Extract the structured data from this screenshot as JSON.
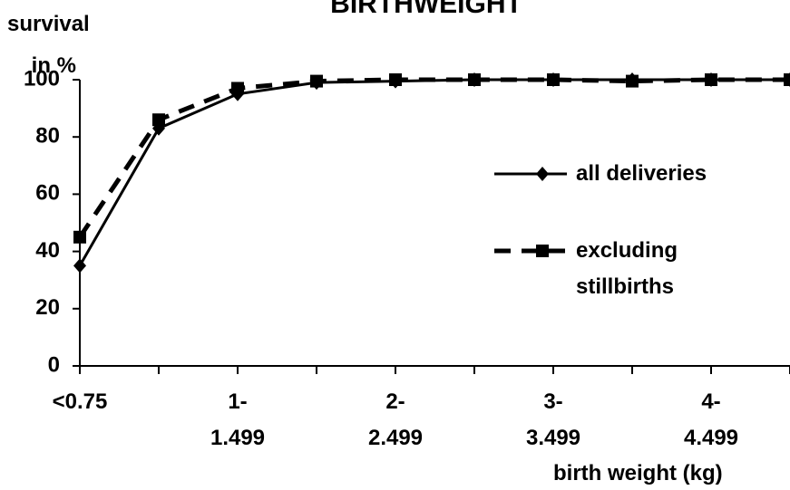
{
  "chart_data": {
    "type": "line",
    "title": "BIRTHWEIGHT",
    "ylabel": "survival\n    in %",
    "xlabel": "birth weight (kg)",
    "categories": [
      "<0.75",
      null,
      "1-\n1.499",
      null,
      "2-\n2.499",
      null,
      "3-\n3.499",
      null,
      "4-\n4.499",
      null
    ],
    "series": [
      {
        "name": "all deliveries",
        "color": "#000000",
        "line_style": "solid",
        "marker": "diamond",
        "values": [
          35,
          83,
          95,
          99,
          99.5,
          100,
          100,
          100,
          100,
          100
        ]
      },
      {
        "name": "excluding\nstillbirths",
        "color": "#000000",
        "line_style": "dashed",
        "marker": "square",
        "values": [
          45,
          86,
          97,
          99.5,
          100,
          100,
          100,
          99.5,
          100,
          100
        ]
      }
    ],
    "ylim": [
      0,
      100
    ],
    "yticks": [
      0,
      20,
      40,
      60,
      80,
      100
    ],
    "grid": false,
    "legend": "right"
  }
}
